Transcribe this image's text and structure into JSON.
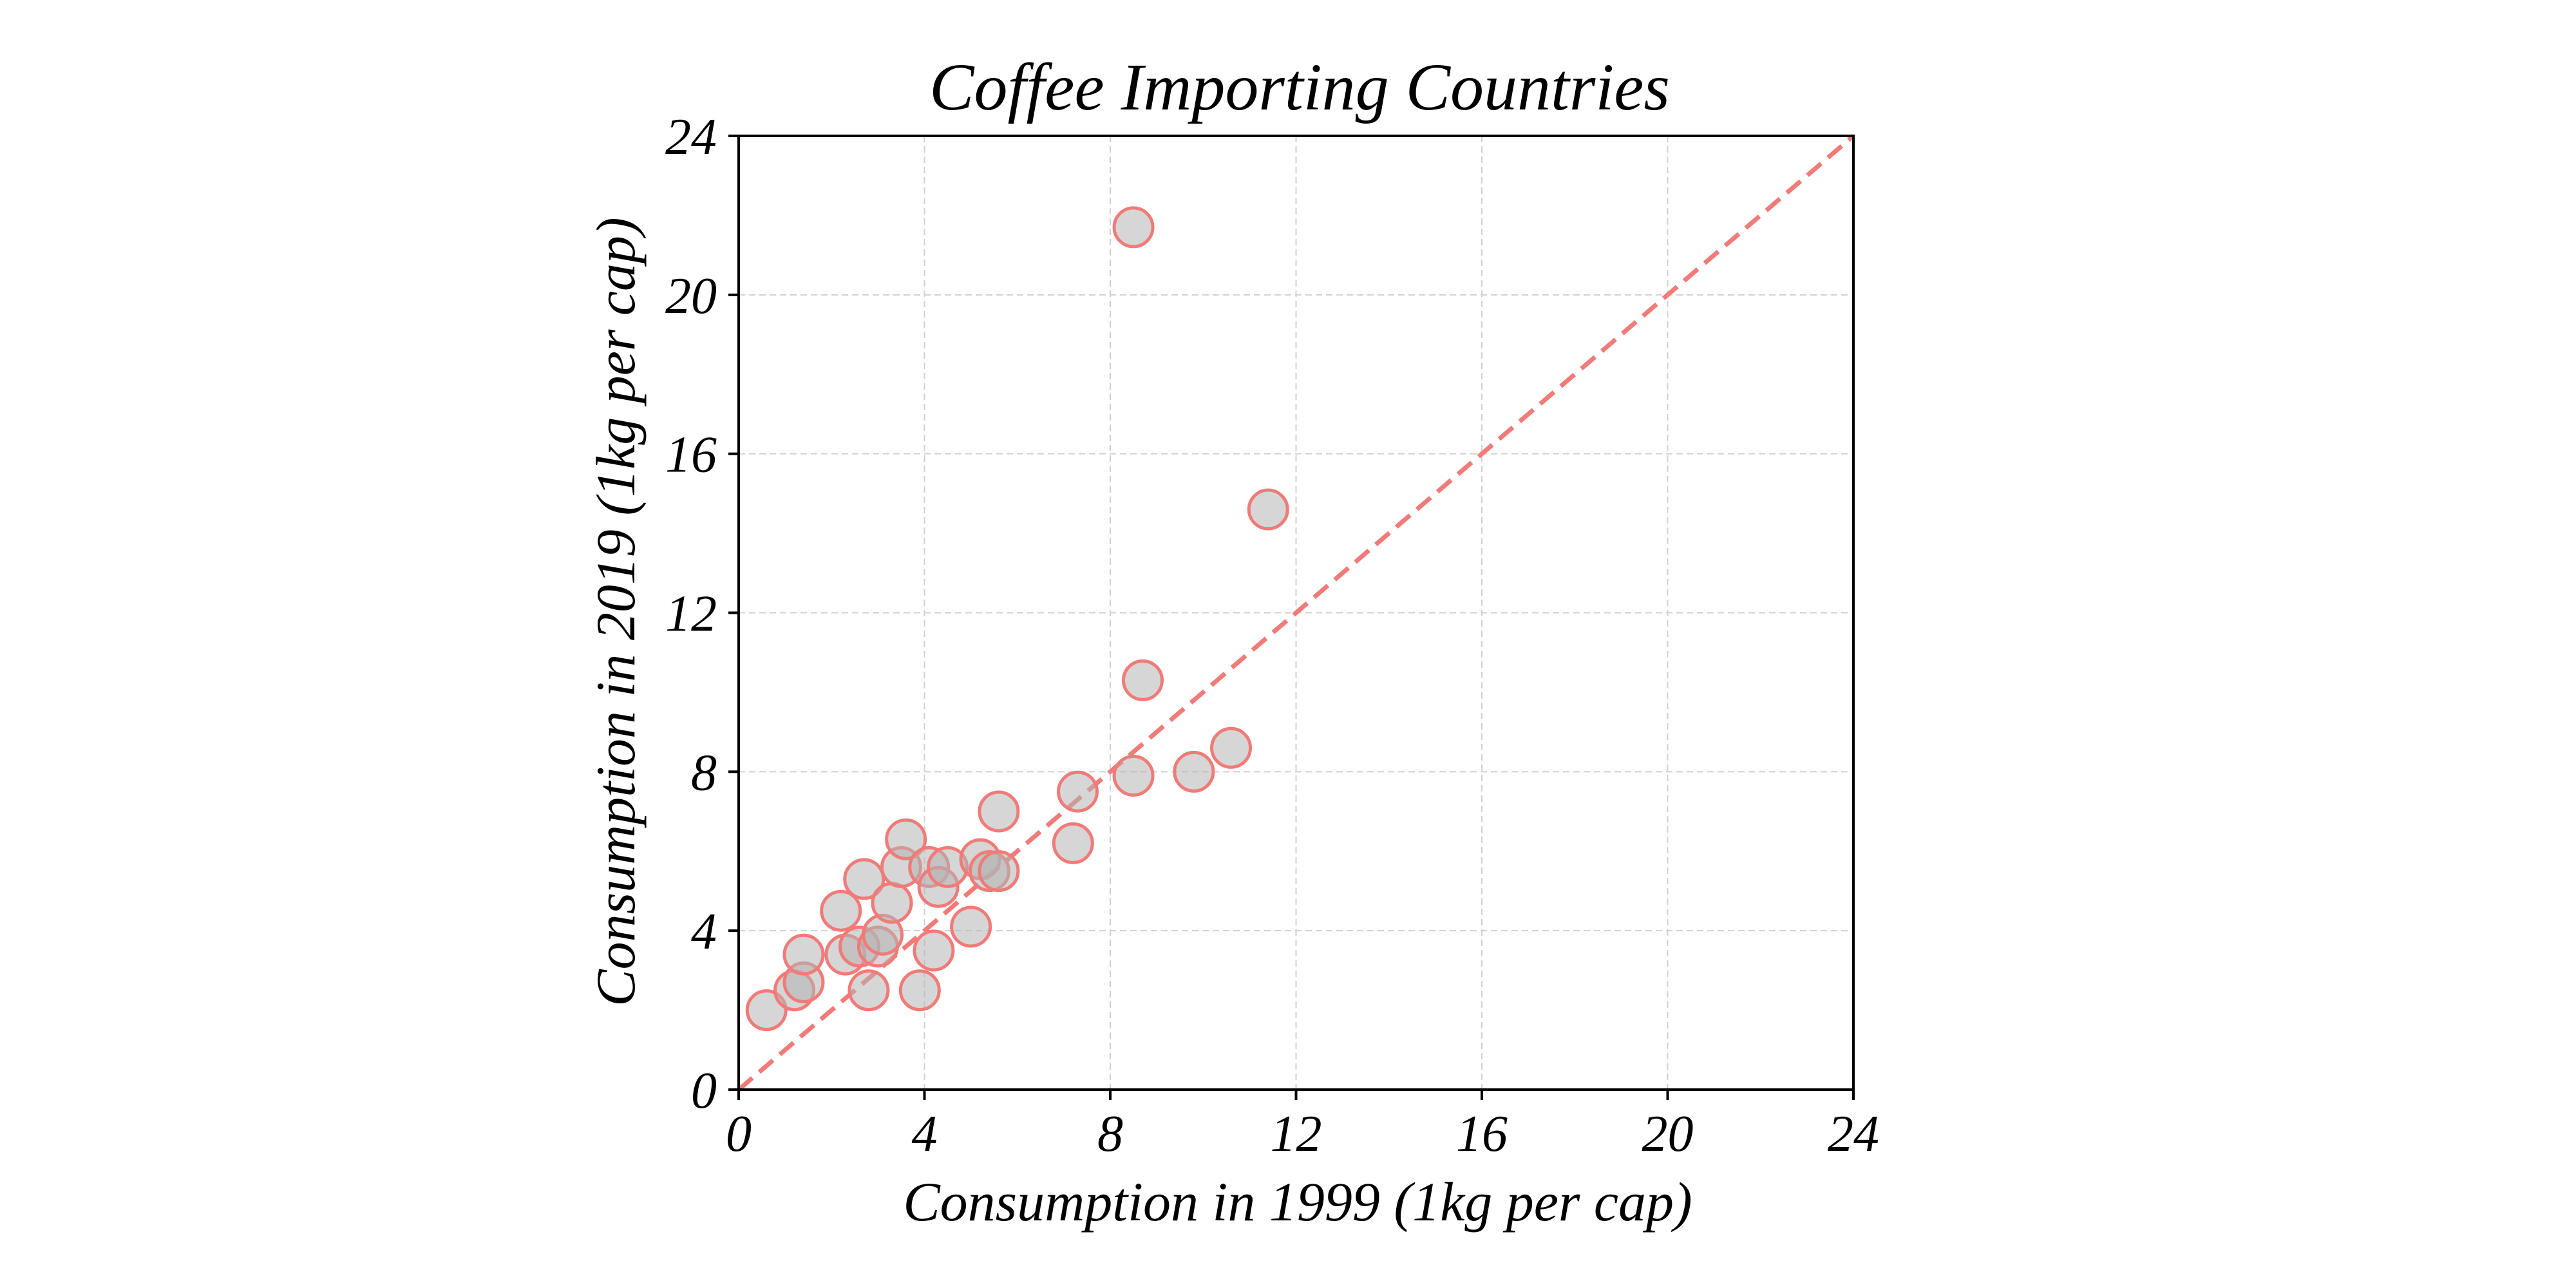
{
  "chart_data": {
    "type": "scatter",
    "title": "Coffee Importing Countries",
    "xlabel": "Consumption in 1999 (1kg per cap)",
    "ylabel": "Consumption in 2019 (1kg per cap)",
    "xlim": [
      0,
      24
    ],
    "ylim": [
      0,
      24
    ],
    "xticks": [
      "0",
      "4",
      "8",
      "12",
      "16",
      "20",
      "24"
    ],
    "yticks": [
      "0",
      "4",
      "8",
      "12",
      "16",
      "20",
      "24"
    ],
    "grid": true,
    "reference_line": {
      "from": [
        0,
        0
      ],
      "to": [
        24,
        24
      ],
      "style": "dashed",
      "color": "#f07b78"
    },
    "marker": {
      "fill": "#b4b4b4",
      "fill_opacity": 0.55,
      "edge": "#f07b78"
    },
    "points": [
      {
        "x": 0.6,
        "y": 2.0
      },
      {
        "x": 1.2,
        "y": 2.5
      },
      {
        "x": 1.4,
        "y": 2.7
      },
      {
        "x": 1.4,
        "y": 3.4
      },
      {
        "x": 2.2,
        "y": 4.5
      },
      {
        "x": 2.3,
        "y": 3.4
      },
      {
        "x": 2.6,
        "y": 3.6
      },
      {
        "x": 2.7,
        "y": 5.3
      },
      {
        "x": 2.8,
        "y": 2.5
      },
      {
        "x": 3.0,
        "y": 3.6
      },
      {
        "x": 3.1,
        "y": 3.9
      },
      {
        "x": 3.3,
        "y": 4.7
      },
      {
        "x": 3.5,
        "y": 5.6
      },
      {
        "x": 3.6,
        "y": 6.3
      },
      {
        "x": 3.9,
        "y": 2.5
      },
      {
        "x": 4.1,
        "y": 5.6
      },
      {
        "x": 4.2,
        "y": 3.5
      },
      {
        "x": 4.3,
        "y": 5.1
      },
      {
        "x": 4.5,
        "y": 5.6
      },
      {
        "x": 5.0,
        "y": 4.1
      },
      {
        "x": 5.2,
        "y": 5.8
      },
      {
        "x": 5.4,
        "y": 5.5
      },
      {
        "x": 5.6,
        "y": 5.5
      },
      {
        "x": 5.6,
        "y": 7.0
      },
      {
        "x": 7.2,
        "y": 6.2
      },
      {
        "x": 7.3,
        "y": 7.5
      },
      {
        "x": 8.5,
        "y": 7.9
      },
      {
        "x": 8.5,
        "y": 21.7
      },
      {
        "x": 8.7,
        "y": 10.3
      },
      {
        "x": 9.8,
        "y": 8.0
      },
      {
        "x": 10.6,
        "y": 8.6
      },
      {
        "x": 11.4,
        "y": 14.6
      }
    ]
  }
}
